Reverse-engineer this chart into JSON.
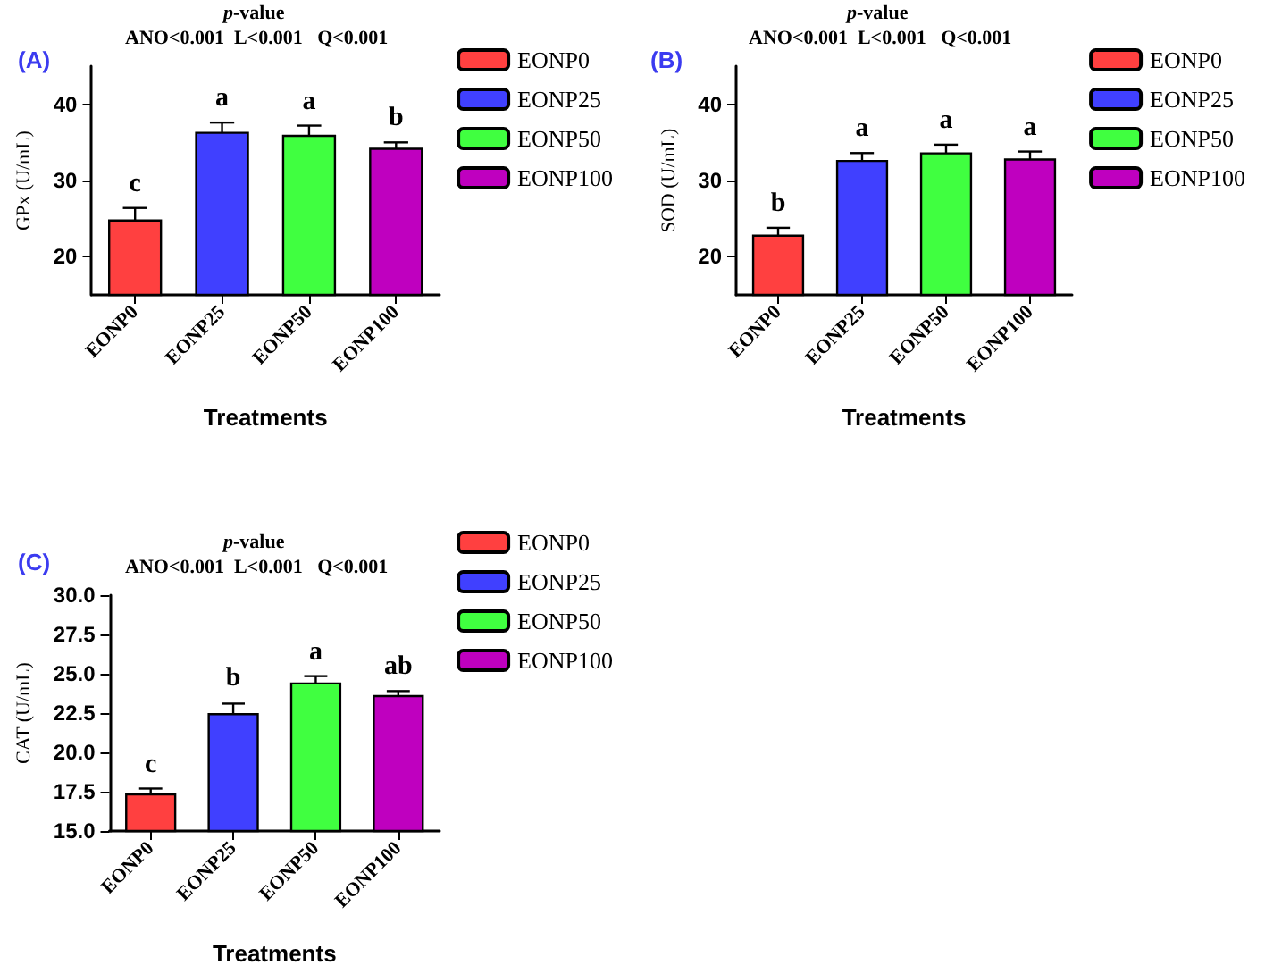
{
  "chart_data": [
    {
      "type": "bar",
      "title": "(A)",
      "annotations": [
        "p-value",
        "ANO<0.001  L<0.001   Q<0.001",
        {
          "text": "c",
          "x": "EONP0",
          "y": 26.4
        },
        {
          "text": "a",
          "x": "EONP25",
          "y": 37.6
        },
        {
          "text": "a",
          "x": "EONP50",
          "y": 37.2
        },
        {
          "text": "b",
          "x": "EONP100",
          "y": 35.0
        }
      ],
      "xlabel": "Treatments",
      "ylabel": "GPx (U/mL)",
      "categories": [
        "EONP0",
        "EONP25",
        "EONP50",
        "EONP100"
      ],
      "series": [
        {
          "name": "EONP0",
          "color": "#ff4040",
          "values": [
            24.9,
            null,
            null,
            null
          ],
          "errors": [
            1.5,
            null,
            null,
            null
          ]
        },
        {
          "name": "EONP25",
          "color": "#4040ff",
          "values": [
            null,
            36.4,
            null,
            null
          ],
          "errors": [
            null,
            1.2,
            null,
            null
          ]
        },
        {
          "name": "EONP50",
          "color": "#40ff40",
          "values": [
            null,
            null,
            36.0,
            null
          ],
          "errors": [
            null,
            null,
            1.2,
            null
          ]
        },
        {
          "name": "EONP100",
          "color": "#bf00bf",
          "values": [
            null,
            null,
            null,
            34.3
          ],
          "errors": [
            null,
            null,
            null,
            0.7
          ]
        }
      ],
      "ylim": [
        15,
        45
      ],
      "yticks": [
        20,
        30,
        40
      ],
      "grid": false,
      "legend": "right"
    },
    {
      "type": "bar",
      "title": "(B)",
      "annotations": [
        "p-value",
        "ANO<0.001  L<0.001   Q<0.001",
        {
          "text": "b",
          "x": "EONP0",
          "y": 23.8
        },
        {
          "text": "a",
          "x": "EONP25",
          "y": 33.6
        },
        {
          "text": "a",
          "x": "EONP50",
          "y": 34.7
        },
        {
          "text": "a",
          "x": "EONP100",
          "y": 33.8
        }
      ],
      "xlabel": "Treatments",
      "ylabel": "SOD (U/mL)",
      "categories": [
        "EONP0",
        "EONP25",
        "EONP50",
        "EONP100"
      ],
      "series": [
        {
          "name": "EONP0",
          "color": "#ff4040",
          "values": [
            22.9,
            null,
            null,
            null
          ],
          "errors": [
            0.9,
            null,
            null,
            null
          ]
        },
        {
          "name": "EONP25",
          "color": "#4040ff",
          "values": [
            null,
            32.7,
            null,
            null
          ],
          "errors": [
            null,
            0.9,
            null,
            null
          ]
        },
        {
          "name": "EONP50",
          "color": "#40ff40",
          "values": [
            null,
            null,
            33.7,
            null
          ],
          "errors": [
            null,
            null,
            1.0,
            null
          ]
        },
        {
          "name": "EONP100",
          "color": "#bf00bf",
          "values": [
            null,
            null,
            null,
            32.9
          ],
          "errors": [
            null,
            null,
            null,
            0.9
          ]
        }
      ],
      "ylim": [
        15,
        45
      ],
      "yticks": [
        20,
        30,
        40
      ],
      "grid": false,
      "legend": "right"
    },
    {
      "type": "bar",
      "title": "(C)",
      "annotations": [
        "p-value",
        "ANO<0.001  L<0.001   Q<0.001",
        {
          "text": "c",
          "x": "EONP0",
          "y": 17.65
        },
        {
          "text": "b",
          "x": "EONP25",
          "y": 23.2
        },
        {
          "text": "a",
          "x": "EONP50",
          "y": 24.85
        },
        {
          "text": "ab",
          "x": "EONP100",
          "y": 23.9
        }
      ],
      "xlabel": "Treatments",
      "ylabel": "CAT (U/mL)",
      "categories": [
        "EONP0",
        "EONP25",
        "EONP50",
        "EONP100"
      ],
      "series": [
        {
          "name": "EONP0",
          "color": "#ff4040",
          "values": [
            17.4,
            null,
            null,
            null
          ],
          "errors": [
            0.3,
            null,
            null,
            null
          ]
        },
        {
          "name": "EONP25",
          "color": "#4040ff",
          "values": [
            null,
            22.5,
            null,
            null
          ],
          "errors": [
            null,
            0.6,
            null,
            null
          ]
        },
        {
          "name": "EONP50",
          "color": "#40ff40",
          "values": [
            null,
            null,
            24.45,
            null
          ],
          "errors": [
            null,
            null,
            0.4,
            null
          ]
        },
        {
          "name": "EONP100",
          "color": "#bf00bf",
          "values": [
            null,
            null,
            null,
            23.65
          ],
          "errors": [
            null,
            null,
            null,
            0.25
          ]
        }
      ],
      "ylim": [
        15,
        30
      ],
      "yticks": [
        {
          "value": 15,
          "label": "15.0"
        },
        {
          "value": 17.5,
          "label": "17.5"
        },
        {
          "value": 20,
          "label": "20.0"
        },
        {
          "value": 22.5,
          "label": "22.5"
        },
        {
          "value": 25,
          "label": "25.0"
        },
        {
          "value": 27.5,
          "label": "27.5"
        },
        {
          "value": 30,
          "label": "30.0"
        }
      ],
      "grid": false,
      "legend": "right"
    }
  ]
}
